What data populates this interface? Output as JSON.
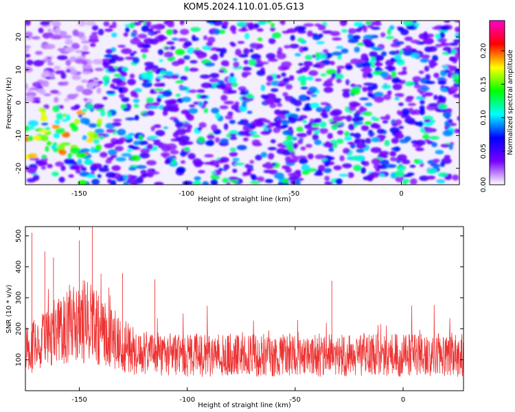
{
  "figure": {
    "title": "KOM5.2024.110.01.05.G13"
  },
  "chart_data": [
    {
      "type": "heatmap",
      "xlabel": "Height of straight line (km)",
      "ylabel": "Frequency (Hz)",
      "xlim": [
        -175,
        27
      ],
      "ylim": [
        -25,
        25
      ],
      "xticks": [
        -150,
        -100,
        -50,
        0
      ],
      "yticks": [
        -20,
        -10,
        0,
        10,
        20
      ],
      "colorbar": {
        "label": "Normalized spectral amplitude",
        "ticks": [
          "0.00",
          "0.05",
          "0.10",
          "0.15",
          "0.20"
        ],
        "range": [
          0,
          0.245
        ],
        "colors": [
          "#ffffff",
          "#7a00ff",
          "#0000ff",
          "#00ffff",
          "#00ff00",
          "#ffff00",
          "#ff0000",
          "#ff00cc"
        ]
      },
      "hot_regions": [
        {
          "x": [
            -175,
            -140
          ],
          "y": [
            -17,
            -2
          ],
          "level": 0.2
        },
        {
          "x": [
            -135,
            -120
          ],
          "y": [
            -5,
            2
          ],
          "level": 0.12
        }
      ]
    },
    {
      "type": "line",
      "xlabel": "Height of straight line (km)",
      "ylabel": "SNR (10 * v/v)",
      "xlim": [
        -175,
        28
      ],
      "ylim": [
        0,
        530
      ],
      "xticks": [
        -150,
        -100,
        -50,
        0
      ],
      "yticks": [
        100,
        200,
        300,
        400,
        500
      ],
      "series_color": "#ee3333",
      "peaks": [
        {
          "x": -172,
          "y": 510
        },
        {
          "x": -166,
          "y": 450
        },
        {
          "x": -162,
          "y": 430
        },
        {
          "x": -150,
          "y": 485
        },
        {
          "x": -144,
          "y": 530
        },
        {
          "x": -130,
          "y": 380
        },
        {
          "x": -115,
          "y": 360
        },
        {
          "x": -33,
          "y": 355
        }
      ]
    }
  ]
}
